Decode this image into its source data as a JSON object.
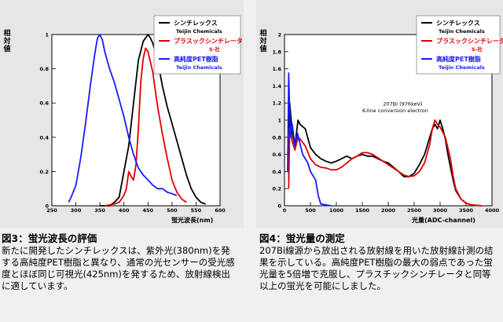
{
  "figure1": {
    "ylabel": "相対値",
    "xlabel": "蛍光波長(nm)",
    "caption_title": "図3：蛍光波長の評価",
    "caption_text": "新たに開発したシンチレックスは、紫外光(380nm)を発する高純度PET樹脂と異なり、通常の光センサーの受光感度とほぼ同じ可視光(425nm)を発するため、放射線検出に適しています。",
    "legend": [
      {
        "name": "シンチレックス",
        "sub": "Teijin Chemicals",
        "color": "#000000"
      },
      {
        "name": "プラスックシンチレータ",
        "sub": "S-社",
        "color": "#e00000"
      },
      {
        "name": "高純度PET樹脂",
        "sub": "Teijin Chemicals",
        "color": "#1a1aff"
      }
    ]
  },
  "figure2": {
    "ylabel": "相対値",
    "xlabel": "光量(ADC-channel)",
    "annotation_line1": "207Bi (976keV)",
    "annotation_line2": "K-line conversion electron",
    "caption_title": "図4：蛍光量の測定",
    "caption_text": "207Bi線源から放出される放射線を用いた放射線計測の結果を示している。高純度PET樹脂の最大の弱点であった蛍光量を5倍増で克服し、プラスチックシンチレータと同等以上の蛍光を可能にしました。",
    "legend": [
      {
        "name": "シンチレックス",
        "sub": "Teijin Chemicals",
        "color": "#000000"
      },
      {
        "name": "プラスックシンチレータ",
        "sub": "S-社",
        "color": "#e00000"
      },
      {
        "name": "高純度PET樹脂",
        "sub": "Teijin Chemicals",
        "color": "#1a1aff"
      }
    ]
  },
  "chart_data": [
    {
      "type": "line",
      "xlabel": "蛍光波長(nm)",
      "ylabel": "相対値",
      "xlim": [
        250,
        600
      ],
      "ylim": [
        0,
        1
      ],
      "xticks": [
        "250",
        "300",
        "350",
        "400",
        "450",
        "500",
        "550",
        "600"
      ],
      "yticks": [
        "0",
        "0.2",
        "0.4",
        "0.6",
        "0.8",
        "1"
      ],
      "series": [
        {
          "name": "シンチレックス",
          "color": "#000000",
          "x": [
            350,
            370,
            380,
            390,
            400,
            410,
            420,
            430,
            440,
            450,
            455,
            460,
            470,
            480,
            490,
            500,
            510,
            520,
            530,
            540,
            550,
            560,
            570
          ],
          "y": [
            0,
            0,
            0.02,
            0.05,
            0.2,
            0.35,
            0.6,
            0.85,
            0.96,
            1.0,
            0.98,
            0.95,
            0.85,
            0.7,
            0.58,
            0.48,
            0.38,
            0.28,
            0.18,
            0.1,
            0.05,
            0.02,
            0.01
          ]
        },
        {
          "name": "プラスックシンチレータ",
          "color": "#e00000",
          "x": [
            360,
            380,
            390,
            400,
            405,
            410,
            415,
            420,
            425,
            430,
            435,
            440,
            445,
            450,
            460,
            470,
            480,
            490,
            500,
            510,
            520,
            530
          ],
          "y": [
            0,
            0.01,
            0.02,
            0.06,
            0.1,
            0.2,
            0.17,
            0.15,
            0.24,
            0.45,
            0.72,
            0.86,
            0.92,
            0.9,
            0.78,
            0.58,
            0.42,
            0.28,
            0.15,
            0.08,
            0.04,
            0.02
          ]
        },
        {
          "name": "高純度PET樹脂",
          "color": "#1a1aff",
          "x": [
            285,
            290,
            300,
            310,
            320,
            330,
            340,
            345,
            350,
            355,
            360,
            370,
            380,
            390,
            400,
            410,
            420,
            430,
            440,
            450,
            460,
            470,
            480,
            490,
            500,
            510
          ],
          "y": [
            0.02,
            0.05,
            0.12,
            0.28,
            0.48,
            0.7,
            0.9,
            0.98,
            1.0,
            0.97,
            0.9,
            0.8,
            0.72,
            0.62,
            0.52,
            0.4,
            0.3,
            0.22,
            0.18,
            0.15,
            0.12,
            0.1,
            0.1,
            0.08,
            0.07,
            0.06
          ]
        }
      ]
    },
    {
      "type": "line",
      "xlabel": "光量(ADC-channel)",
      "ylabel": "相対値",
      "xlim": [
        0,
        4000
      ],
      "ylim": [
        0,
        2
      ],
      "xticks": [
        "0",
        "500",
        "1000",
        "1500",
        "2000",
        "2500",
        "3000",
        "3500",
        "4000"
      ],
      "yticks": [
        "0",
        "0.2",
        "0.4",
        "0.6",
        "0.8",
        "1",
        "1.2",
        "1.4",
        "1.6",
        "1.8",
        "2"
      ],
      "series": [
        {
          "name": "シンチレックス",
          "color": "#000000",
          "x": [
            80,
            100,
            150,
            200,
            260,
            300,
            400,
            500,
            600,
            700,
            800,
            900,
            1000,
            1100,
            1200,
            1300,
            1400,
            1500,
            1600,
            1700,
            1800,
            1900,
            2000,
            2100,
            2200,
            2300,
            2400,
            2500,
            2600,
            2700,
            2800,
            2850,
            2900,
            2950,
            3000,
            3050,
            3100,
            3150,
            3200,
            3250,
            3300,
            3400,
            3500,
            3600,
            3800
          ],
          "y": [
            0.3,
            1.2,
            0.85,
            0.7,
            1.0,
            0.95,
            0.9,
            0.68,
            0.6,
            0.55,
            0.52,
            0.5,
            0.52,
            0.55,
            0.58,
            0.55,
            0.58,
            0.6,
            0.58,
            0.58,
            0.55,
            0.52,
            0.5,
            0.45,
            0.4,
            0.34,
            0.34,
            0.38,
            0.48,
            0.6,
            0.8,
            0.9,
            0.95,
            0.9,
            1.0,
            0.9,
            0.78,
            0.6,
            0.45,
            0.3,
            0.18,
            0.08,
            0.03,
            0.01,
            0.0
          ]
        },
        {
          "name": "プラスックシンチレータ",
          "color": "#e00000",
          "x": [
            80,
            100,
            150,
            200,
            260,
            300,
            400,
            500,
            600,
            700,
            800,
            900,
            1000,
            1100,
            1200,
            1300,
            1400,
            1500,
            1600,
            1700,
            1800,
            1900,
            2000,
            2100,
            2200,
            2300,
            2400,
            2500,
            2600,
            2700,
            2800,
            2850,
            2900,
            2950,
            3000,
            3100,
            3200,
            3250,
            3300,
            3400,
            3500,
            3600,
            3800
          ],
          "y": [
            0.2,
            0.9,
            0.75,
            0.65,
            0.8,
            0.78,
            0.7,
            0.55,
            0.48,
            0.45,
            0.44,
            0.42,
            0.42,
            0.45,
            0.5,
            0.55,
            0.58,
            0.62,
            0.62,
            0.6,
            0.56,
            0.52,
            0.48,
            0.44,
            0.4,
            0.36,
            0.34,
            0.35,
            0.4,
            0.5,
            0.72,
            0.9,
            1.0,
            0.95,
            0.92,
            0.8,
            0.55,
            0.35,
            0.2,
            0.08,
            0.03,
            0.01,
            0.0
          ]
        },
        {
          "name": "高純度PET樹脂",
          "color": "#1a1aff",
          "x": [
            60,
            80,
            100,
            120,
            150,
            200,
            250,
            300,
            350,
            400,
            450,
            500,
            550,
            600,
            650,
            700,
            800,
            900
          ],
          "y": [
            0.4,
            1.55,
            1.1,
            0.8,
            0.95,
            0.7,
            0.85,
            0.72,
            0.6,
            0.55,
            0.5,
            0.4,
            0.35,
            0.3,
            0.12,
            0.02,
            0.01,
            0.0
          ]
        }
      ]
    }
  ]
}
